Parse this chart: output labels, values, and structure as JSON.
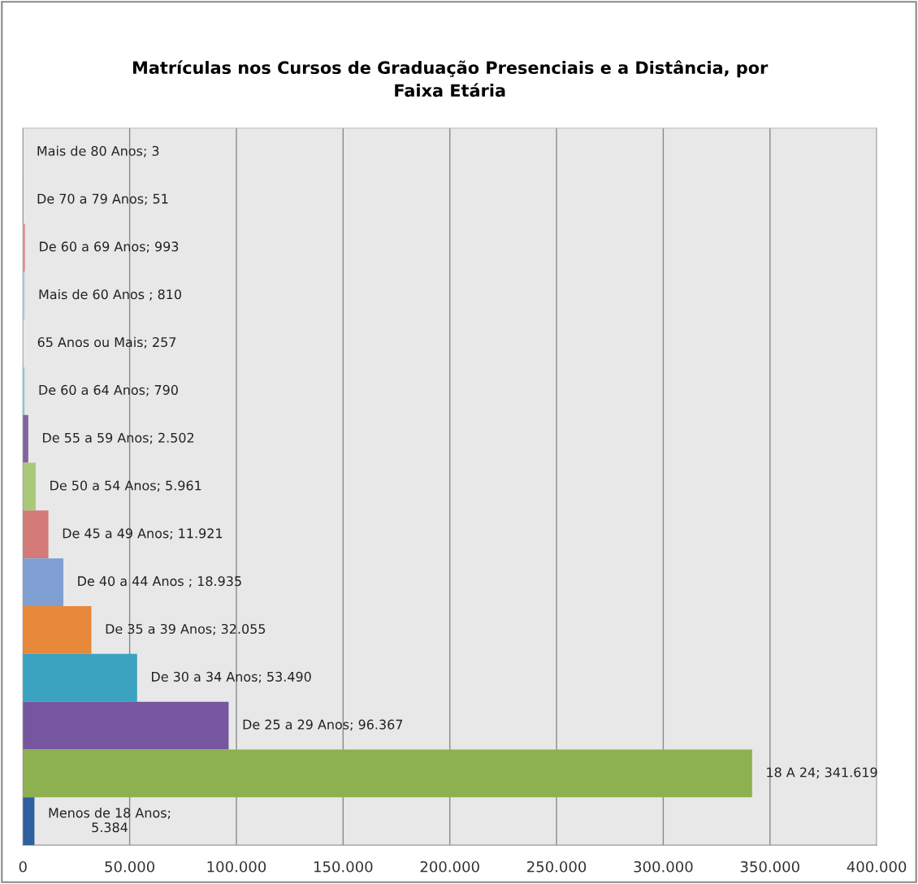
{
  "chart_data": {
    "type": "bar",
    "orientation": "horizontal",
    "title": "Matrículas nos Cursos de Graduação Presenciais e a Distância, por\nFaixa Etária",
    "categories": [
      null,
      null,
      null,
      null,
      null,
      null,
      null,
      null,
      null,
      null,
      null,
      null,
      null,
      null,
      null
    ],
    "values": [
      3,
      51,
      993,
      810,
      257,
      790,
      2502,
      5961,
      11921,
      18935,
      32055,
      53490,
      96367,
      341619,
      5384
    ],
    "value_labels": [
      "Mais de 80 Anos; 3",
      "De 70 a 79 Anos; 51",
      "De 60 a 69 Anos; 993",
      "Mais de 60 Anos ; 810",
      "65 Anos ou Mais; 257",
      "De 60 a 64 Anos; 790",
      "De 55 a 59 Anos; 2.502",
      "De 50 a 54 Anos; 5.961",
      "De 45 a 49 Anos; 11.921",
      "De 40 a 44 Anos ; 18.935",
      "De 35 a 39 Anos; 32.055",
      "De 30 a 34 Anos; 53.490",
      "De 25 a 29 Anos; 96.367",
      "18 A 24; 341.619",
      "Menos de 18 Anos;\n5.384"
    ],
    "colors": [
      "#4f81bd",
      "#c0504d",
      "#d99694",
      "#b9cde5",
      "#fac090",
      "#93cddd",
      "#8064a2",
      "#a9c97a",
      "#d47a78",
      "#7f9fd2",
      "#e8883a",
      "#3ba3c0",
      "#76569e",
      "#8db050",
      "#2e5f9e"
    ],
    "xlim": [
      0,
      400000
    ],
    "xticks": [
      0,
      {
        "value": 50000,
        "label": "50.000"
      },
      {
        "value": 100000,
        "label": "100.000"
      },
      {
        "value": 150000,
        "label": "150.000"
      },
      {
        "value": 200000,
        "label": "200.000"
      },
      {
        "value": 250000,
        "label": "250.000"
      },
      {
        "value": 300000,
        "label": "300.000"
      },
      {
        "value": 350000,
        "label": "350.000"
      },
      {
        "value": 400000,
        "label": "400.000"
      }
    ],
    "grid": "x",
    "legend": false,
    "tick_labels": "x"
  }
}
